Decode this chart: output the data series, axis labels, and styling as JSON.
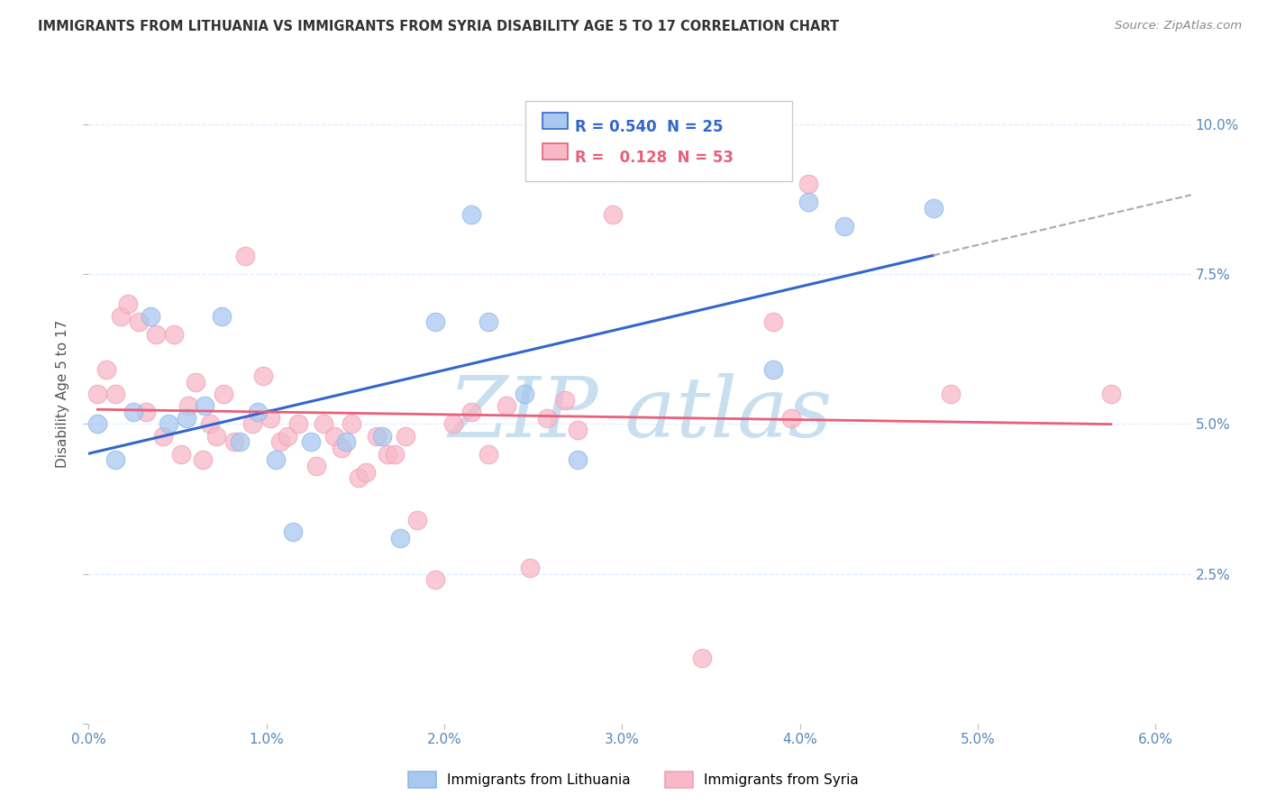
{
  "title": "IMMIGRANTS FROM LITHUANIA VS IMMIGRANTS FROM SYRIA DISABILITY AGE 5 TO 17 CORRELATION CHART",
  "source": "Source: ZipAtlas.com",
  "ylabel": "Disability Age 5 to 17",
  "xlim": [
    0.0,
    6.2
  ],
  "ylim": [
    0.0,
    11.0
  ],
  "xticks": [
    0.0,
    1.0,
    2.0,
    3.0,
    4.0,
    5.0,
    6.0
  ],
  "xtick_labels": [
    "0.0%",
    "1.0%",
    "2.0%",
    "3.0%",
    "4.0%",
    "5.0%",
    "6.0%"
  ],
  "yticks": [
    0.0,
    2.5,
    5.0,
    7.5,
    10.0
  ],
  "ytick_labels": [
    "",
    "2.5%",
    "5.0%",
    "7.5%",
    "10.0%"
  ],
  "legend_R_blue": "0.540",
  "legend_N_blue": "25",
  "legend_R_pink": "0.128",
  "legend_N_pink": "53",
  "blue_scatter_color": "#A8C8F0",
  "blue_scatter_edge": "#90B8E8",
  "pink_scatter_color": "#F8B8C8",
  "pink_scatter_edge": "#F0A0B8",
  "blue_line_color": "#3366CC",
  "pink_line_color": "#E8607A",
  "dashed_line_color": "#AAAAAA",
  "watermark": "ZIP atlas",
  "watermark_color": "#C8DFF0",
  "title_color": "#333333",
  "source_color": "#888888",
  "axis_tick_color": "#5588BB",
  "grid_color": "#DDEEFF",
  "legend_box_color": "#DDDDDD",
  "lithuania_x": [
    0.05,
    0.15,
    0.25,
    0.35,
    0.45,
    0.55,
    0.65,
    0.75,
    0.85,
    0.95,
    1.05,
    1.15,
    1.25,
    1.45,
    1.65,
    1.75,
    1.95,
    2.15,
    2.25,
    2.45,
    2.75,
    3.85,
    4.05,
    4.25,
    4.75
  ],
  "lithuania_y": [
    5.0,
    4.4,
    5.2,
    6.8,
    5.0,
    5.1,
    5.3,
    6.8,
    4.7,
    5.2,
    4.4,
    3.2,
    4.7,
    4.7,
    4.8,
    3.1,
    6.7,
    8.5,
    6.7,
    5.5,
    4.4,
    5.9,
    8.7,
    8.3,
    8.6
  ],
  "syria_x": [
    0.05,
    0.1,
    0.15,
    0.18,
    0.22,
    0.28,
    0.32,
    0.38,
    0.42,
    0.48,
    0.52,
    0.56,
    0.6,
    0.64,
    0.68,
    0.72,
    0.76,
    0.82,
    0.88,
    0.92,
    0.98,
    1.02,
    1.08,
    1.12,
    1.18,
    1.28,
    1.32,
    1.38,
    1.42,
    1.48,
    1.52,
    1.56,
    1.62,
    1.68,
    1.72,
    1.78,
    1.85,
    1.95,
    2.05,
    2.15,
    2.25,
    2.35,
    2.48,
    2.58,
    2.68,
    2.75,
    2.95,
    3.45,
    3.85,
    3.95,
    4.05,
    4.85,
    5.75
  ],
  "syria_y": [
    5.5,
    5.9,
    5.5,
    6.8,
    7.0,
    6.7,
    5.2,
    6.5,
    4.8,
    6.5,
    4.5,
    5.3,
    5.7,
    4.4,
    5.0,
    4.8,
    5.5,
    4.7,
    7.8,
    5.0,
    5.8,
    5.1,
    4.7,
    4.8,
    5.0,
    4.3,
    5.0,
    4.8,
    4.6,
    5.0,
    4.1,
    4.2,
    4.8,
    4.5,
    4.5,
    4.8,
    3.4,
    2.4,
    5.0,
    5.2,
    4.5,
    5.3,
    2.6,
    5.1,
    5.4,
    4.9,
    8.5,
    1.1,
    6.7,
    5.1,
    9.0,
    5.5,
    5.5
  ]
}
